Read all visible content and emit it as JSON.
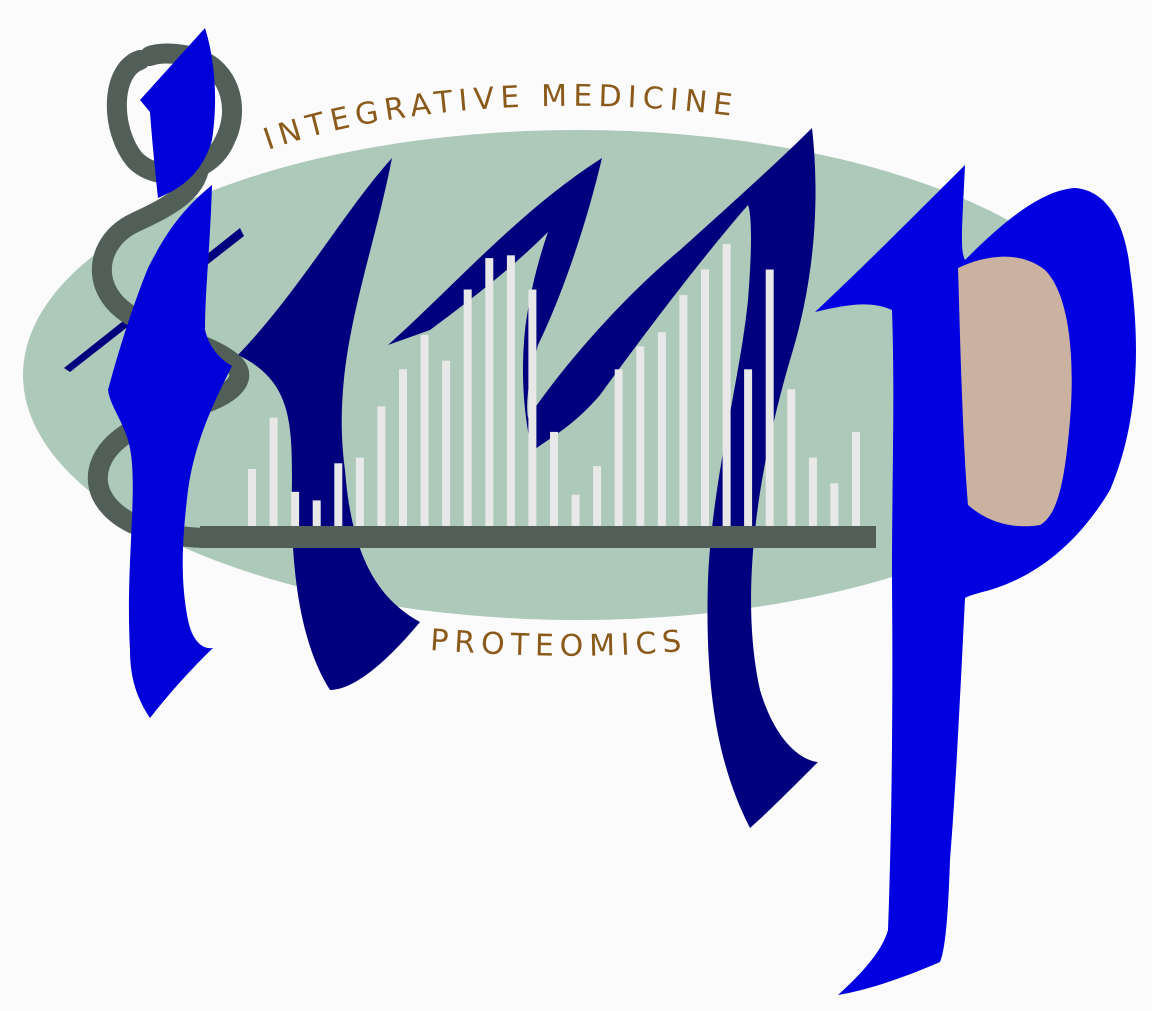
{
  "logo": {
    "letters": "imp",
    "top_text": "INTEGRATIVE MEDICINE",
    "bottom_text": "PROTEOMICS",
    "spectrum_peaks": [
      0.2,
      0.38,
      0.12,
      0.09,
      0.22,
      0.24,
      0.42,
      0.55,
      0.67,
      0.58,
      0.83,
      0.94,
      0.95,
      0.83,
      0.33,
      0.11,
      0.21,
      0.55,
      0.63,
      0.68,
      0.81,
      0.9,
      0.99,
      0.55,
      0.9,
      0.48,
      0.24,
      0.15,
      0.33
    ]
  },
  "colors": {
    "background": "#fbfbfb",
    "ellipse": "#adc9b9",
    "letter_i": "#0000d8",
    "letter_m": "#00007e",
    "letter_p": "#0000e0",
    "p_bowl": "#cbb1a0",
    "serpent": "#515f58",
    "peaks": "#e8e8e8",
    "text": "#8a5a1a"
  }
}
